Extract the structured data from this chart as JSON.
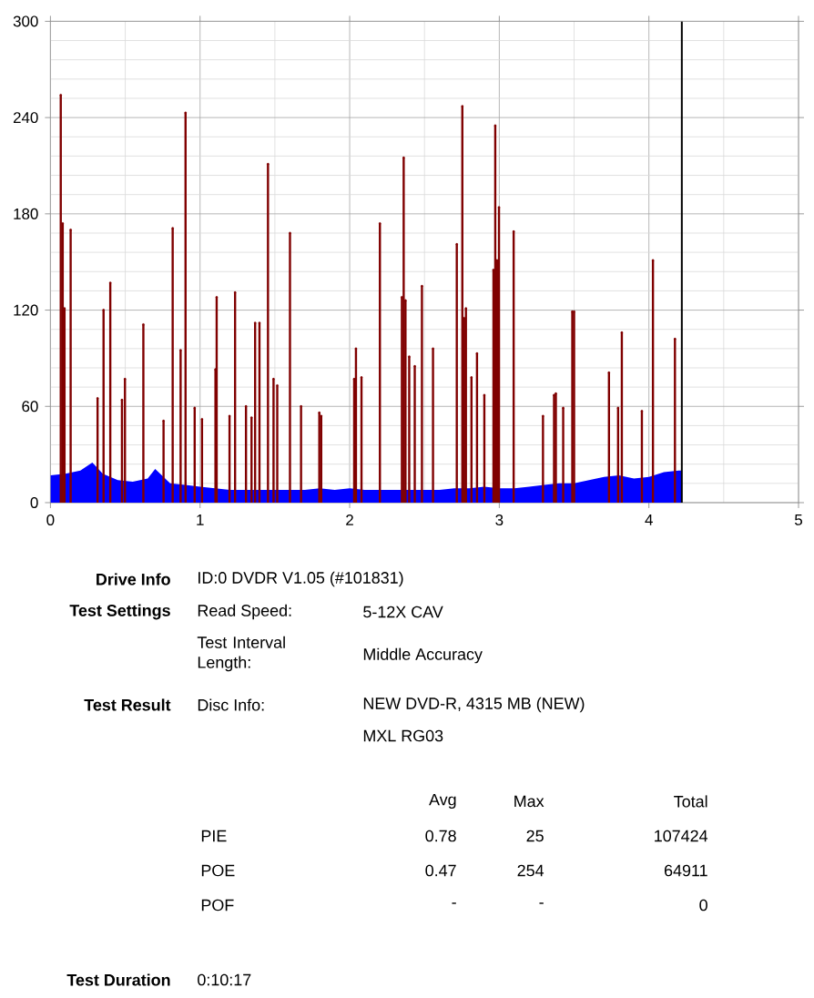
{
  "chart_data": {
    "type": "lollipop",
    "xlim": [
      0,
      5
    ],
    "ylim": [
      0,
      300
    ],
    "xticks": [
      0,
      1,
      2,
      3,
      4,
      5
    ],
    "yticks": [
      0,
      60,
      120,
      180,
      240,
      300
    ],
    "grid": true,
    "series": [
      {
        "type": "area",
        "color": "#0000ff",
        "x": [
          0,
          0.1,
          0.2,
          0.28,
          0.35,
          0.45,
          0.55,
          0.65,
          0.7,
          0.8,
          0.9,
          1.0,
          1.1,
          1.2,
          1.3,
          1.4,
          1.5,
          1.6,
          1.7,
          1.8,
          1.9,
          2.0,
          2.1,
          2.2,
          2.3,
          2.4,
          2.5,
          2.6,
          2.7,
          2.8,
          2.9,
          3.0,
          3.1,
          3.2,
          3.3,
          3.4,
          3.5,
          3.6,
          3.7,
          3.8,
          3.9,
          4.0,
          4.1,
          4.2,
          4.22
        ],
        "values": [
          17,
          18,
          20,
          25,
          18,
          14,
          13,
          15,
          21,
          12,
          11,
          10,
          9,
          8,
          8,
          8,
          8,
          8,
          8,
          9,
          8,
          9,
          8,
          8,
          8,
          8,
          8,
          8,
          9,
          9,
          10,
          9,
          9,
          10,
          11,
          12,
          12,
          14,
          16,
          17,
          15,
          16,
          19,
          20,
          20
        ]
      },
      {
        "color": "#800000",
        "x": [
          0.069,
          0.082,
          0.094,
          0.135,
          0.315,
          0.355,
          0.4,
          0.478,
          0.498,
          0.621,
          0.756,
          0.817,
          0.87,
          0.903,
          0.964,
          1.013,
          1.103,
          1.111,
          1.197,
          1.234,
          1.307,
          1.344,
          1.368,
          1.397,
          1.454,
          1.491,
          1.516,
          1.601,
          1.675,
          1.797,
          1.81,
          2.03,
          2.042,
          2.079,
          2.202,
          2.349,
          2.361,
          2.373,
          2.398,
          2.435,
          2.483,
          2.557,
          2.716,
          2.753,
          2.765,
          2.777,
          2.814,
          2.851,
          2.9,
          2.961,
          2.973,
          2.985,
          2.998,
          3.096,
          3.292,
          3.366,
          3.378,
          3.427,
          3.488,
          3.5,
          3.733,
          3.794,
          3.819,
          3.953,
          4.027,
          4.174
        ],
        "values": [
          254,
          174,
          121,
          170,
          65,
          120,
          137,
          64,
          77,
          111,
          51,
          171,
          95,
          243,
          59,
          52,
          83,
          128,
          54,
          131,
          60,
          53,
          112,
          112,
          211,
          77,
          73,
          168,
          60,
          56,
          54,
          77,
          96,
          78,
          174,
          128,
          215,
          126,
          91,
          85,
          135,
          96,
          161,
          247,
          115,
          121,
          78,
          93,
          67,
          145,
          235,
          151,
          184,
          169,
          54,
          67,
          68,
          59,
          119,
          119,
          81,
          59,
          106,
          57,
          151,
          102
        ]
      }
    ],
    "ref_lines": [
      {
        "axis": "x",
        "value": 4.22,
        "color": "#000000"
      }
    ],
    "annotations": [
      "Drive Info",
      "ID:0 DVDR V1.05 (#101831)",
      "Test Settings",
      "Read Speed:",
      "5-12X CAV",
      "Test Interval Length:",
      "Middle Accuracy",
      "Test Result",
      "Disc Info:",
      "NEW DVD-R, 4315 MB (NEW)",
      "MXL RG03",
      "Avg",
      "Max",
      "Total",
      "PIE",
      "0.78",
      "25",
      "107424",
      "POE",
      "0.47",
      "254",
      "64911",
      "POF",
      "-",
      "-",
      "0",
      "Test Duration",
      "0:10:17"
    ]
  }
}
